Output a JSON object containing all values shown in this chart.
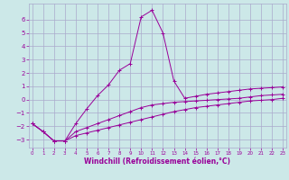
{
  "xlabel": "Windchill (Refroidissement éolien,°C)",
  "background_color": "#cce8e8",
  "grid_color": "#aaaacc",
  "line_color": "#990099",
  "x_ticks": [
    0,
    1,
    2,
    3,
    4,
    5,
    6,
    7,
    8,
    9,
    10,
    11,
    12,
    13,
    14,
    15,
    16,
    17,
    18,
    19,
    20,
    21,
    22,
    23
  ],
  "y_ticks": [
    -3,
    -2,
    -1,
    0,
    1,
    2,
    3,
    4,
    5,
    6
  ],
  "ylim": [
    -3.6,
    7.2
  ],
  "xlim": [
    -0.3,
    23.3
  ],
  "line1_x": [
    0,
    1,
    2,
    3,
    4,
    5,
    6,
    7,
    8,
    9,
    10,
    11,
    12,
    13,
    14,
    15,
    16,
    17,
    18,
    19,
    20,
    21,
    22,
    23
  ],
  "line1_y": [
    -1.8,
    -2.4,
    -3.1,
    -3.1,
    -1.8,
    -0.7,
    0.3,
    1.1,
    2.2,
    2.7,
    6.2,
    6.7,
    5.0,
    1.4,
    0.1,
    0.25,
    0.4,
    0.5,
    0.6,
    0.7,
    0.8,
    0.85,
    0.9,
    0.95
  ],
  "line2_x": [
    0,
    1,
    2,
    3,
    4,
    5,
    6,
    7,
    8,
    9,
    10,
    11,
    12,
    13,
    14,
    15,
    16,
    17,
    18,
    19,
    20,
    21,
    22,
    23
  ],
  "line2_y": [
    -1.8,
    -2.4,
    -3.1,
    -3.1,
    -2.4,
    -2.1,
    -1.8,
    -1.5,
    -1.2,
    -0.9,
    -0.6,
    -0.4,
    -0.3,
    -0.2,
    -0.15,
    -0.1,
    -0.05,
    0.0,
    0.05,
    0.1,
    0.2,
    0.3,
    0.35,
    0.4
  ],
  "line3_x": [
    0,
    1,
    2,
    3,
    4,
    5,
    6,
    7,
    8,
    9,
    10,
    11,
    12,
    13,
    14,
    15,
    16,
    17,
    18,
    19,
    20,
    21,
    22,
    23
  ],
  "line3_y": [
    -1.8,
    -2.4,
    -3.1,
    -3.1,
    -2.7,
    -2.5,
    -2.3,
    -2.1,
    -1.9,
    -1.7,
    -1.5,
    -1.3,
    -1.1,
    -0.9,
    -0.75,
    -0.6,
    -0.5,
    -0.4,
    -0.3,
    -0.2,
    -0.1,
    -0.05,
    0.0,
    0.1
  ]
}
